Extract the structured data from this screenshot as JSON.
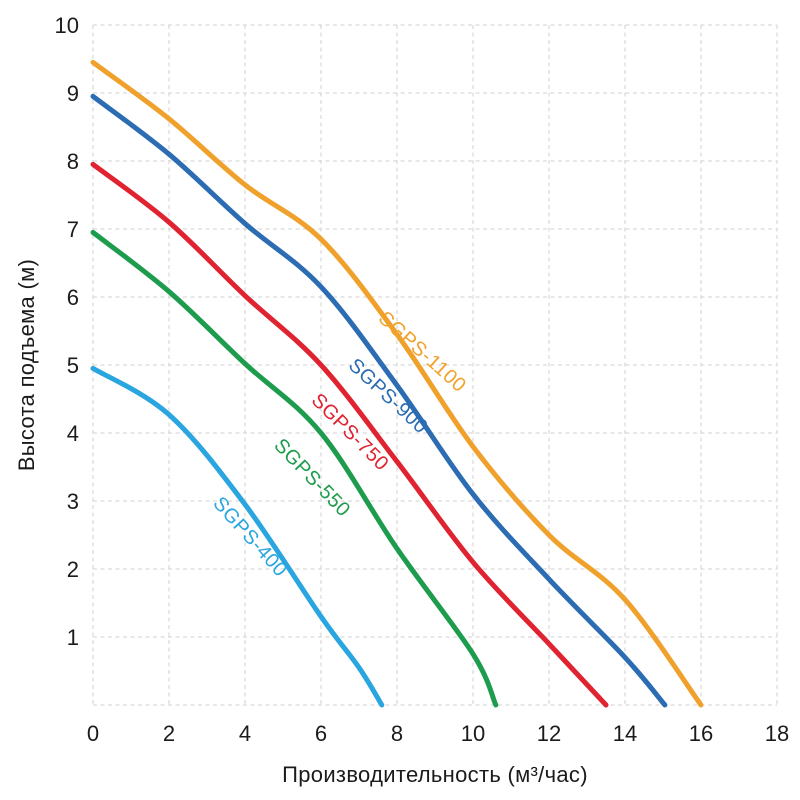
{
  "chart_data": {
    "type": "line",
    "title": "",
    "xlabel": "Производительность (м³/час)",
    "ylabel": "Высота подъема (м)",
    "xlim": [
      0,
      18
    ],
    "ylim": [
      0,
      10
    ],
    "x_ticks": [
      0,
      2,
      4,
      6,
      8,
      10,
      12,
      14,
      16,
      18
    ],
    "y_ticks": [
      1,
      2,
      3,
      4,
      5,
      6,
      7,
      8,
      9,
      10
    ],
    "grid": "dashed",
    "legend_position": "inline-rotated-curve-labels",
    "series": [
      {
        "name": "SGPS-400",
        "color": "#29A5DF",
        "points": [
          [
            0,
            4.95
          ],
          [
            2,
            4.27
          ],
          [
            4,
            2.95
          ],
          [
            6,
            1.3
          ],
          [
            7,
            0.55
          ],
          [
            7.6,
            0
          ]
        ],
        "label": {
          "x": 4.13,
          "y": 2.47,
          "angle": 48
        }
      },
      {
        "name": "SGPS-550",
        "color": "#1E9C4E",
        "points": [
          [
            0,
            6.95
          ],
          [
            2,
            6.08
          ],
          [
            4,
            5.02
          ],
          [
            6,
            4.0
          ],
          [
            8,
            2.3
          ],
          [
            10,
            0.75
          ],
          [
            10.6,
            0
          ]
        ],
        "label": {
          "x": 5.76,
          "y": 3.34,
          "angle": 46
        }
      },
      {
        "name": "SGPS-750",
        "color": "#E02330",
        "points": [
          [
            0,
            7.95
          ],
          [
            2,
            7.1
          ],
          [
            4,
            6.02
          ],
          [
            6,
            5.0
          ],
          [
            8,
            3.58
          ],
          [
            10,
            2.1
          ],
          [
            12,
            0.9
          ],
          [
            13.5,
            0
          ]
        ],
        "label": {
          "x": 6.76,
          "y": 4.01,
          "angle": 45
        }
      },
      {
        "name": "SGPS-900",
        "color": "#2B6CB3",
        "points": [
          [
            0,
            8.95
          ],
          [
            2,
            8.1
          ],
          [
            4,
            7.08
          ],
          [
            6,
            6.15
          ],
          [
            8,
            4.7
          ],
          [
            10,
            3.1
          ],
          [
            12,
            1.85
          ],
          [
            14,
            0.7
          ],
          [
            15.05,
            0
          ]
        ],
        "label": {
          "x": 7.76,
          "y": 4.54,
          "angle": 43
        }
      },
      {
        "name": "SGPS-1100",
        "color": "#F0A12C",
        "points": [
          [
            0,
            9.45
          ],
          [
            2,
            8.62
          ],
          [
            4,
            7.65
          ],
          [
            6,
            6.85
          ],
          [
            8,
            5.45
          ],
          [
            10,
            3.8
          ],
          [
            12,
            2.5
          ],
          [
            14,
            1.55
          ],
          [
            16,
            0
          ]
        ],
        "label": {
          "x": 8.66,
          "y": 5.19,
          "angle": 42
        }
      }
    ],
    "styles": {
      "grid_color": "#D9D9D9",
      "text_color": "#1B1B1B",
      "background": "#FFFFFF",
      "curve_width": 5,
      "tick_font_size": 22,
      "curve_label_font_size": 20
    }
  }
}
